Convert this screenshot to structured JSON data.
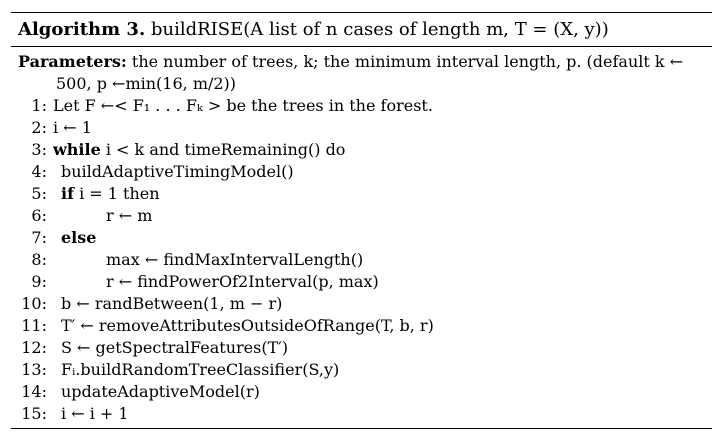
{
  "algorithm": {
    "label": "Algorithm 3.",
    "signature": "buildRISE(A list of n cases of length m, T = (X, y))",
    "parameters_label": "Parameters:",
    "parameters_line1": "the number of trees, k; the minimum interval length, p. (default k ←",
    "parameters_line2": "500, p ←min(16, m/2))",
    "steps": [
      {
        "num": "1:",
        "text": "Let F ←< F₁ . . . Fₖ > be the trees in the forest."
      },
      {
        "num": "2:",
        "text": "i ← 1"
      },
      {
        "num": "3:",
        "keyword": "while",
        "text": "i < k and timeRemaining() do"
      },
      {
        "num": "4:",
        "text": "buildAdaptiveTimingModel()"
      },
      {
        "num": "5:",
        "keyword": "if",
        "text": "i = 1 then"
      },
      {
        "num": "6:",
        "text": "r ← m"
      },
      {
        "num": "7:",
        "keyword": "else",
        "text": ""
      },
      {
        "num": "8:",
        "text": "max ← findMaxIntervalLength()"
      },
      {
        "num": "9:",
        "text": "r ← findPowerOf2Interval(p, max)"
      },
      {
        "num": "10:",
        "text": "b ← randBetween(1, m − r)"
      },
      {
        "num": "11:",
        "text": "T′ ← removeAttributesOutsideOfRange(T, b, r)"
      },
      {
        "num": "12:",
        "text": "S ← getSpectralFeatures(T′)"
      },
      {
        "num": "13:",
        "text": "Fᵢ.buildRandomTreeClassifier(S,y)"
      },
      {
        "num": "14:",
        "text": "updateAdaptiveModel(r)"
      },
      {
        "num": "15:",
        "text": "i ← i + 1"
      }
    ]
  }
}
